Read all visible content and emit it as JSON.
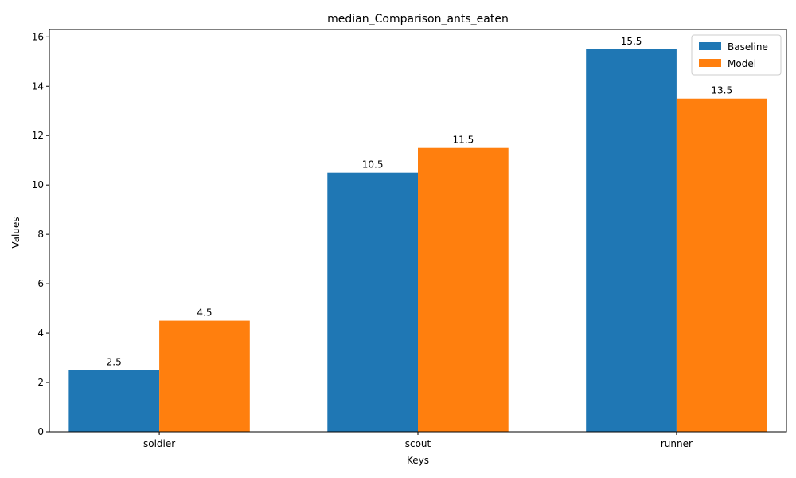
{
  "chart_data": {
    "type": "bar",
    "title": "median_Comparison_ants_eaten",
    "xlabel": "Keys",
    "ylabel": "Values",
    "categories": [
      "soldier",
      "scout",
      "runner"
    ],
    "series": [
      {
        "name": "Baseline",
        "values": [
          2.5,
          10.5,
          15.5
        ],
        "color": "#1f77b4"
      },
      {
        "name": "Model",
        "values": [
          4.5,
          11.5,
          13.5
        ],
        "color": "#ff7f0e"
      }
    ],
    "ylim": [
      0,
      16.3
    ],
    "yticks": [
      "0",
      "2",
      "4",
      "6",
      "8",
      "10",
      "12",
      "14",
      "16"
    ],
    "grid": false,
    "legend_position": "top-right"
  }
}
